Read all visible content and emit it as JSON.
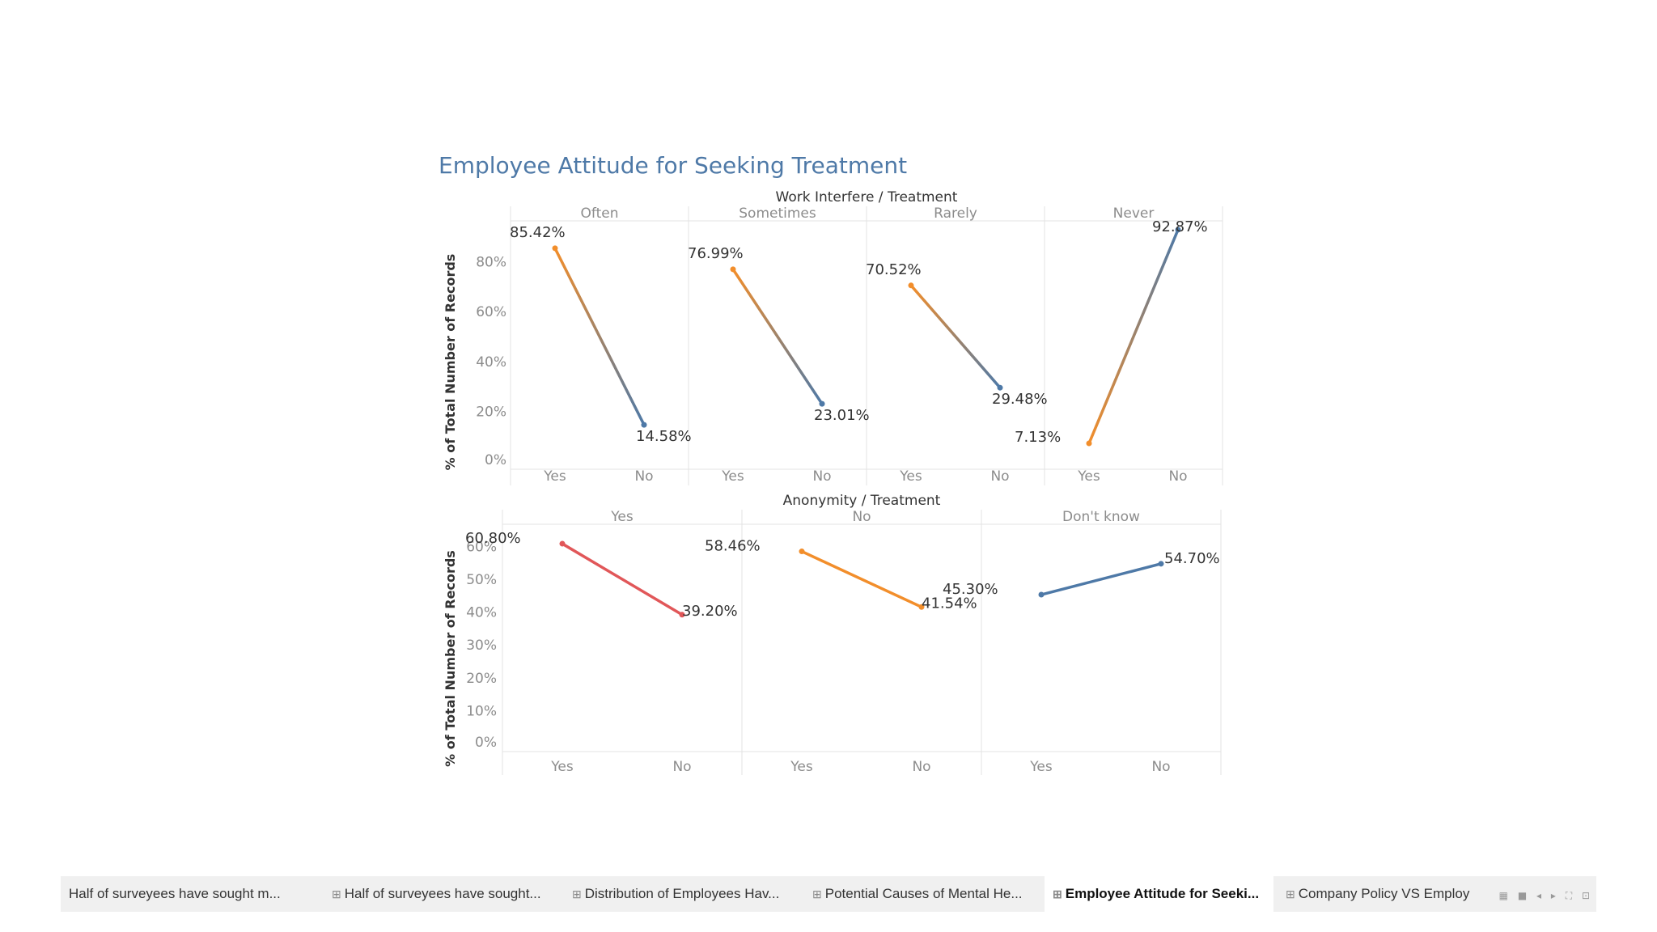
{
  "title": "Employee Attitude for Seeking Treatment",
  "colors": {
    "orange": "#f28e2b",
    "blue": "#4e79a7",
    "red": "#e15759",
    "title": "#4e79a7"
  },
  "chart_data": [
    {
      "type": "line",
      "title": "Work Interfere / Treatment",
      "ylabel": "% of Total Number of Records",
      "ylim": [
        0,
        100
      ],
      "yticks": [
        "80%",
        "60%",
        "40%",
        "20%",
        "0%"
      ],
      "ytick_values": [
        80,
        60,
        40,
        20,
        0
      ],
      "x": [
        "Yes",
        "No"
      ],
      "panels": [
        {
          "name": "Often",
          "values": [
            85.42,
            14.58
          ],
          "labels": [
            "85.42%",
            "14.58%"
          ]
        },
        {
          "name": "Sometimes",
          "values": [
            76.99,
            23.01
          ],
          "labels": [
            "76.99%",
            "23.01%"
          ]
        },
        {
          "name": "Rarely",
          "values": [
            70.52,
            29.48
          ],
          "labels": [
            "70.52%",
            "29.48%"
          ]
        },
        {
          "name": "Never",
          "values": [
            7.13,
            92.87
          ],
          "labels": [
            "7.13%",
            "92.87%"
          ]
        }
      ]
    },
    {
      "type": "line",
      "title": "Anonymity / Treatment",
      "ylabel": "% of Total Number of Records",
      "ylim": [
        0,
        65
      ],
      "yticks": [
        "60%",
        "50%",
        "40%",
        "30%",
        "20%",
        "10%",
        "0%"
      ],
      "ytick_values": [
        60,
        50,
        40,
        30,
        20,
        10,
        0
      ],
      "x": [
        "Yes",
        "No"
      ],
      "panels": [
        {
          "name": "Yes",
          "values": [
            60.8,
            39.2
          ],
          "labels": [
            "60.80%",
            "39.20%"
          ]
        },
        {
          "name": "No",
          "values": [
            58.46,
            41.54
          ],
          "labels": [
            "58.46%",
            "41.54%"
          ]
        },
        {
          "name": "Don't know",
          "values": [
            45.3,
            54.7
          ],
          "labels": [
            "45.30%",
            "54.70%"
          ]
        }
      ]
    }
  ],
  "tabs": [
    {
      "label": "Half of surveyees have sought m...",
      "icon": ""
    },
    {
      "label": "Half of surveyees have sought...",
      "icon": "⊞"
    },
    {
      "label": "Distribution of Employees Hav...",
      "icon": "⊞"
    },
    {
      "label": "Potential Causes of Mental He...",
      "icon": "⊞"
    },
    {
      "label": "Employee Attitude for Seeki...",
      "icon": "⊞",
      "active": true
    },
    {
      "label": "Company Policy VS Employ",
      "icon": "⊞"
    }
  ],
  "tab_controls": {
    "grid": "▦",
    "single": "■",
    "prev": "◂",
    "next": "▸",
    "fullscreen": "⛶",
    "present": "⊡"
  }
}
